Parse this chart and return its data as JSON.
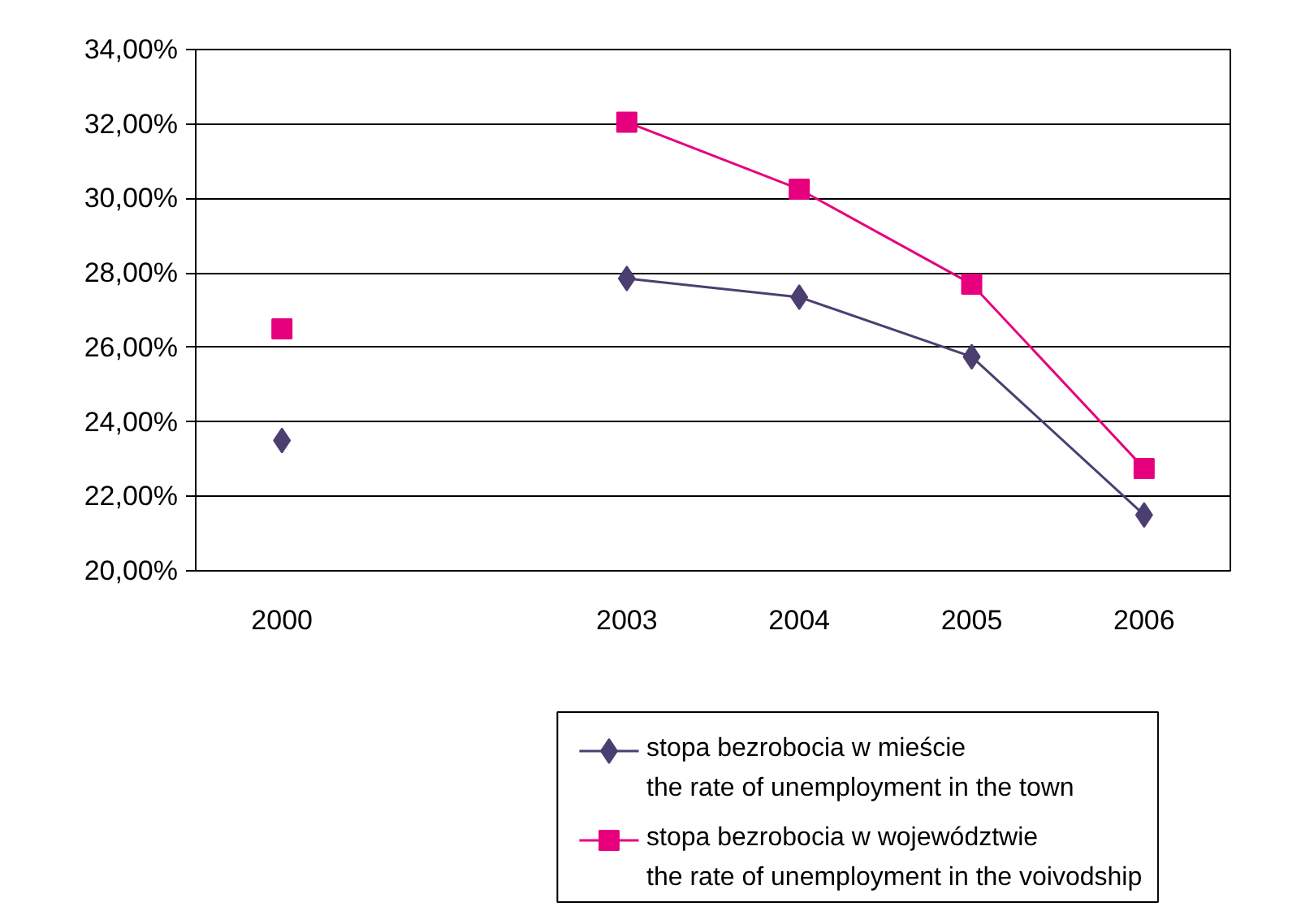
{
  "chart_data": {
    "type": "line",
    "categories": [
      "2000",
      null,
      "2003",
      "2004",
      "2005",
      "2006"
    ],
    "series": [
      {
        "name": "stopa bezrobocia w mieście\nthe rate of unemployment in the town",
        "color": "#4b3f72",
        "marker": "diamond",
        "values": [
          23.5,
          null,
          27.85,
          27.35,
          25.75,
          21.5
        ]
      },
      {
        "name": "stopa bezrobocia w województwie\nthe rate of unemployment in the voivodship",
        "color": "#e6007e",
        "marker": "square",
        "values": [
          26.5,
          null,
          32.05,
          30.25,
          27.7,
          22.75
        ]
      }
    ],
    "ylim": [
      20,
      34
    ],
    "yticks": [
      {
        "value": 20,
        "label": "20,00%"
      },
      {
        "value": 22,
        "label": "22,00%"
      },
      {
        "value": 24,
        "label": "24,00%"
      },
      {
        "value": 26,
        "label": "26,00%"
      },
      {
        "value": 28,
        "label": "28,00%"
      },
      {
        "value": 30,
        "label": "30,00%"
      },
      {
        "value": 32,
        "label": "32,00%"
      },
      {
        "value": 34,
        "label": "34,00%"
      }
    ],
    "grid": "y",
    "legend": "bottom",
    "line_style": "solid"
  }
}
